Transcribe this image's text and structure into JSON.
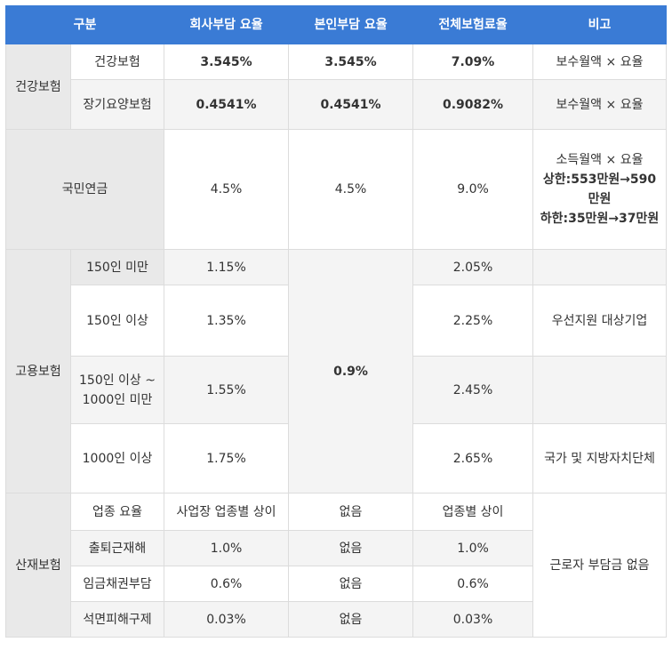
{
  "header": [
    "구분",
    "회사부담 요율",
    "본인부담 요율",
    "전체보험료율",
    "비고"
  ],
  "health": {
    "category": "건강보험",
    "rows": [
      {
        "name": "건강보험",
        "company": "3.545%",
        "self": "3.545%",
        "total": "7.09%",
        "note": "보수월액 × 요율"
      },
      {
        "name": "장기요양보험",
        "company": "0.4541%",
        "self": "0.4541%",
        "total": "0.9082%",
        "note": "보수월액 × 요율"
      }
    ]
  },
  "pension": {
    "category": "국민연금",
    "company": "4.5%",
    "self": "4.5%",
    "total": "9.0%",
    "note_lines": [
      "소득월액 × 요율",
      "상한:553만원→590만원",
      "하한:35만원→37만원"
    ]
  },
  "employment": {
    "category": "고용보험",
    "self": "0.9%",
    "rows": [
      {
        "name": "150인 미만",
        "company": "1.15%",
        "total": "2.05%",
        "note": ""
      },
      {
        "name": "150인 이상",
        "company": "1.35%",
        "total": "2.25%",
        "note": "우선지원 대상기업"
      },
      {
        "name": "150인 이상 ~ 1000인 미만",
        "company": "1.55%",
        "total": "2.45%",
        "note": ""
      },
      {
        "name": "1000인 이상",
        "company": "1.75%",
        "total": "2.65%",
        "note": "국가 및 지방자치단체"
      }
    ]
  },
  "industrial": {
    "category": "산재보험",
    "note": "근로자 부담금 없음",
    "rows": [
      {
        "name": "업종 요율",
        "company": "사업장 업종별 상이",
        "self": "없음",
        "total": "업종별 상이"
      },
      {
        "name": "출퇴근재해",
        "company": "1.0%",
        "self": "없음",
        "total": "1.0%"
      },
      {
        "name": "임금채권부담",
        "company": "0.6%",
        "self": "없음",
        "total": "0.6%"
      },
      {
        "name": "석면피해구제",
        "company": "0.03%",
        "self": "없음",
        "total": "0.03%"
      }
    ]
  }
}
